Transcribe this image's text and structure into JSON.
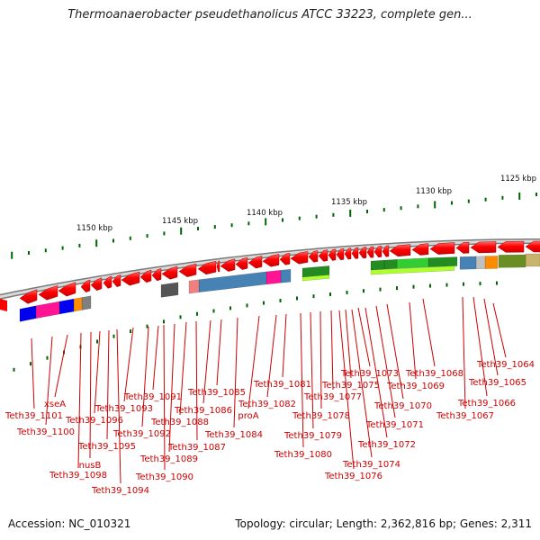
{
  "title": "Thermoanaerobacter pseudethanolicus ATCC 33223, complete gen...",
  "footer": {
    "accession": "Accession: NC_010321",
    "topology": "Topology: circular; Length: 2,362,816 bp; Genes: 2,311"
  },
  "scale": [
    {
      "label": "1125 kbp"
    },
    {
      "label": "1130 kbp"
    },
    {
      "label": "1135 kbp"
    },
    {
      "label": "1140 kbp"
    },
    {
      "label": "1145 kbp"
    },
    {
      "label": "1150 kbp"
    }
  ],
  "gene_labels": [
    "Teth39_1064",
    "Teth39_1065",
    "Teth39_1066",
    "Teth39_1067",
    "Teth39_1068",
    "Teth39_1069",
    "Teth39_1070",
    "Teth39_1071",
    "Teth39_1072",
    "Teth39_1073",
    "Teth39_1074",
    "Teth39_1075",
    "Teth39_1076",
    "Teth39_1077",
    "Teth39_1078",
    "Teth39_1079",
    "Teth39_1080",
    "Teth39_1081",
    "Teth39_1082",
    "proA",
    "Teth39_1084",
    "Teth39_1085",
    "Teth39_1086",
    "Teth39_1087",
    "Teth39_1088",
    "Teth39_1089",
    "Teth39_1090",
    "Teth39_1091",
    "Teth39_1092",
    "Teth39_1093",
    "Teth39_1094",
    "Teth39_1095",
    "Teth39_1096",
    "nusB",
    "Teth39_1098",
    "xseA",
    "Teth39_1100",
    "Teth39_1101"
  ],
  "colors": {
    "gene_fill": "#ff0000",
    "label": "#cc0000",
    "leader_line": "#cc0000",
    "tick": "#006600",
    "backbone": "#999999"
  }
}
